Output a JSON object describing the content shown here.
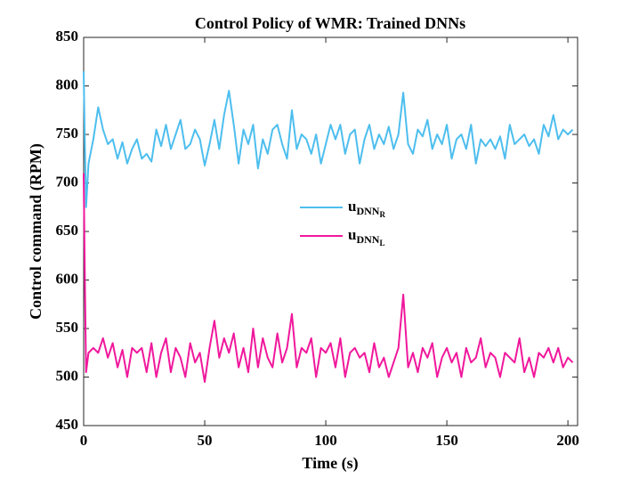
{
  "chart_data": {
    "type": "line",
    "title": "Control Policy of WMR: Trained DNNs",
    "xlabel": "Time (s)",
    "ylabel": "Control command (RPM)",
    "x": [
      0,
      0.5,
      1,
      2,
      4,
      6,
      8,
      10,
      12,
      14,
      16,
      18,
      20,
      22,
      24,
      26,
      28,
      30,
      32,
      34,
      36,
      38,
      40,
      42,
      44,
      46,
      48,
      50,
      52,
      54,
      56,
      58,
      60,
      62,
      64,
      66,
      68,
      70,
      72,
      74,
      76,
      78,
      80,
      82,
      84,
      86,
      88,
      90,
      92,
      94,
      96,
      98,
      100,
      102,
      104,
      106,
      108,
      110,
      112,
      114,
      116,
      118,
      120,
      122,
      124,
      126,
      128,
      130,
      132,
      134,
      136,
      138,
      140,
      142,
      144,
      146,
      148,
      150,
      152,
      154,
      156,
      158,
      160,
      162,
      164,
      166,
      168,
      170,
      172,
      174,
      176,
      178,
      180,
      182,
      184,
      186,
      188,
      190,
      192,
      194,
      196,
      198,
      200,
      202
    ],
    "series": [
      {
        "name": "uDNNR",
        "color": "#4dbeee",
        "values": [
          815,
          740,
          675,
          720,
          745,
          778,
          755,
          740,
          745,
          725,
          742,
          720,
          735,
          745,
          725,
          730,
          722,
          755,
          738,
          760,
          735,
          750,
          765,
          735,
          740,
          755,
          745,
          718,
          740,
          765,
          735,
          770,
          795,
          760,
          720,
          755,
          740,
          760,
          715,
          745,
          730,
          755,
          760,
          740,
          725,
          775,
          735,
          750,
          745,
          730,
          750,
          720,
          740,
          760,
          745,
          760,
          730,
          750,
          755,
          720,
          745,
          760,
          735,
          750,
          740,
          758,
          735,
          750,
          793,
          740,
          730,
          755,
          748,
          765,
          735,
          750,
          740,
          760,
          725,
          745,
          750,
          735,
          760,
          720,
          745,
          738,
          745,
          735,
          748,
          725,
          760,
          740,
          745,
          750,
          738,
          745,
          730,
          760,
          748,
          770,
          745,
          755,
          750,
          755
        ]
      },
      {
        "name": "uDNNL",
        "color": "#f0189c",
        "values": [
          710,
          600,
          505,
          525,
          530,
          525,
          540,
          520,
          535,
          510,
          528,
          500,
          530,
          525,
          530,
          505,
          535,
          500,
          525,
          540,
          505,
          530,
          520,
          500,
          535,
          515,
          525,
          495,
          530,
          558,
          520,
          540,
          525,
          545,
          510,
          530,
          505,
          550,
          510,
          540,
          520,
          510,
          545,
          515,
          530,
          565,
          510,
          530,
          525,
          540,
          500,
          530,
          525,
          535,
          510,
          540,
          500,
          525,
          530,
          520,
          525,
          505,
          535,
          510,
          520,
          500,
          515,
          530,
          585,
          510,
          525,
          505,
          530,
          520,
          535,
          500,
          520,
          530,
          515,
          525,
          500,
          530,
          515,
          520,
          540,
          510,
          525,
          520,
          500,
          525,
          520,
          515,
          540,
          505,
          520,
          500,
          525,
          520,
          530,
          515,
          530,
          510,
          520,
          515
        ]
      }
    ],
    "xlim": [
      0,
      204
    ],
    "ylim": [
      450,
      850
    ],
    "xticks": [
      0,
      50,
      100,
      150,
      200
    ],
    "yticks": [
      450,
      500,
      550,
      600,
      650,
      700,
      750,
      800,
      850
    ]
  }
}
